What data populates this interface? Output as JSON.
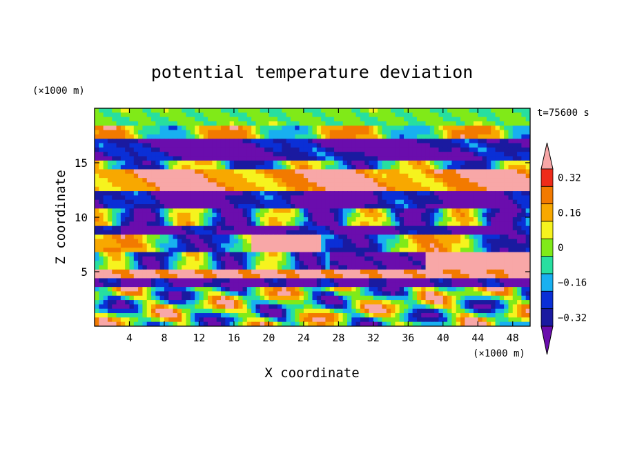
{
  "chart_data": {
    "type": "heatmap",
    "title": "potential temperature deviation",
    "xlabel": "X coordinate",
    "ylabel": "Z coordinate",
    "x_unit": "(×1000 m)",
    "z_unit": "(×1000 m)",
    "time_label": "t=75600 s",
    "xlim": [
      0,
      50
    ],
    "zlim": [
      0,
      20
    ],
    "x_ticks": [
      "4",
      "8",
      "12",
      "16",
      "20",
      "24",
      "28",
      "32",
      "36",
      "40",
      "44",
      "48"
    ],
    "z_ticks": [
      "5",
      "10",
      "15"
    ],
    "colorbar": {
      "labels": [
        "0.32",
        "0.16",
        "0",
        "−0.16",
        "−0.32"
      ],
      "levels": [
        -0.4,
        -0.32,
        -0.24,
        -0.16,
        -0.08,
        0,
        0.08,
        0.16,
        0.24,
        0.32,
        0.4
      ],
      "colors": [
        "#6a0dad",
        "#1a1aa0",
        "#0a2fd6",
        "#18b0f0",
        "#27dfa0",
        "#80ea18",
        "#f6f31e",
        "#f8a800",
        "#f27a00",
        "#ee2b1a",
        "#f8a7a7"
      ]
    }
  }
}
